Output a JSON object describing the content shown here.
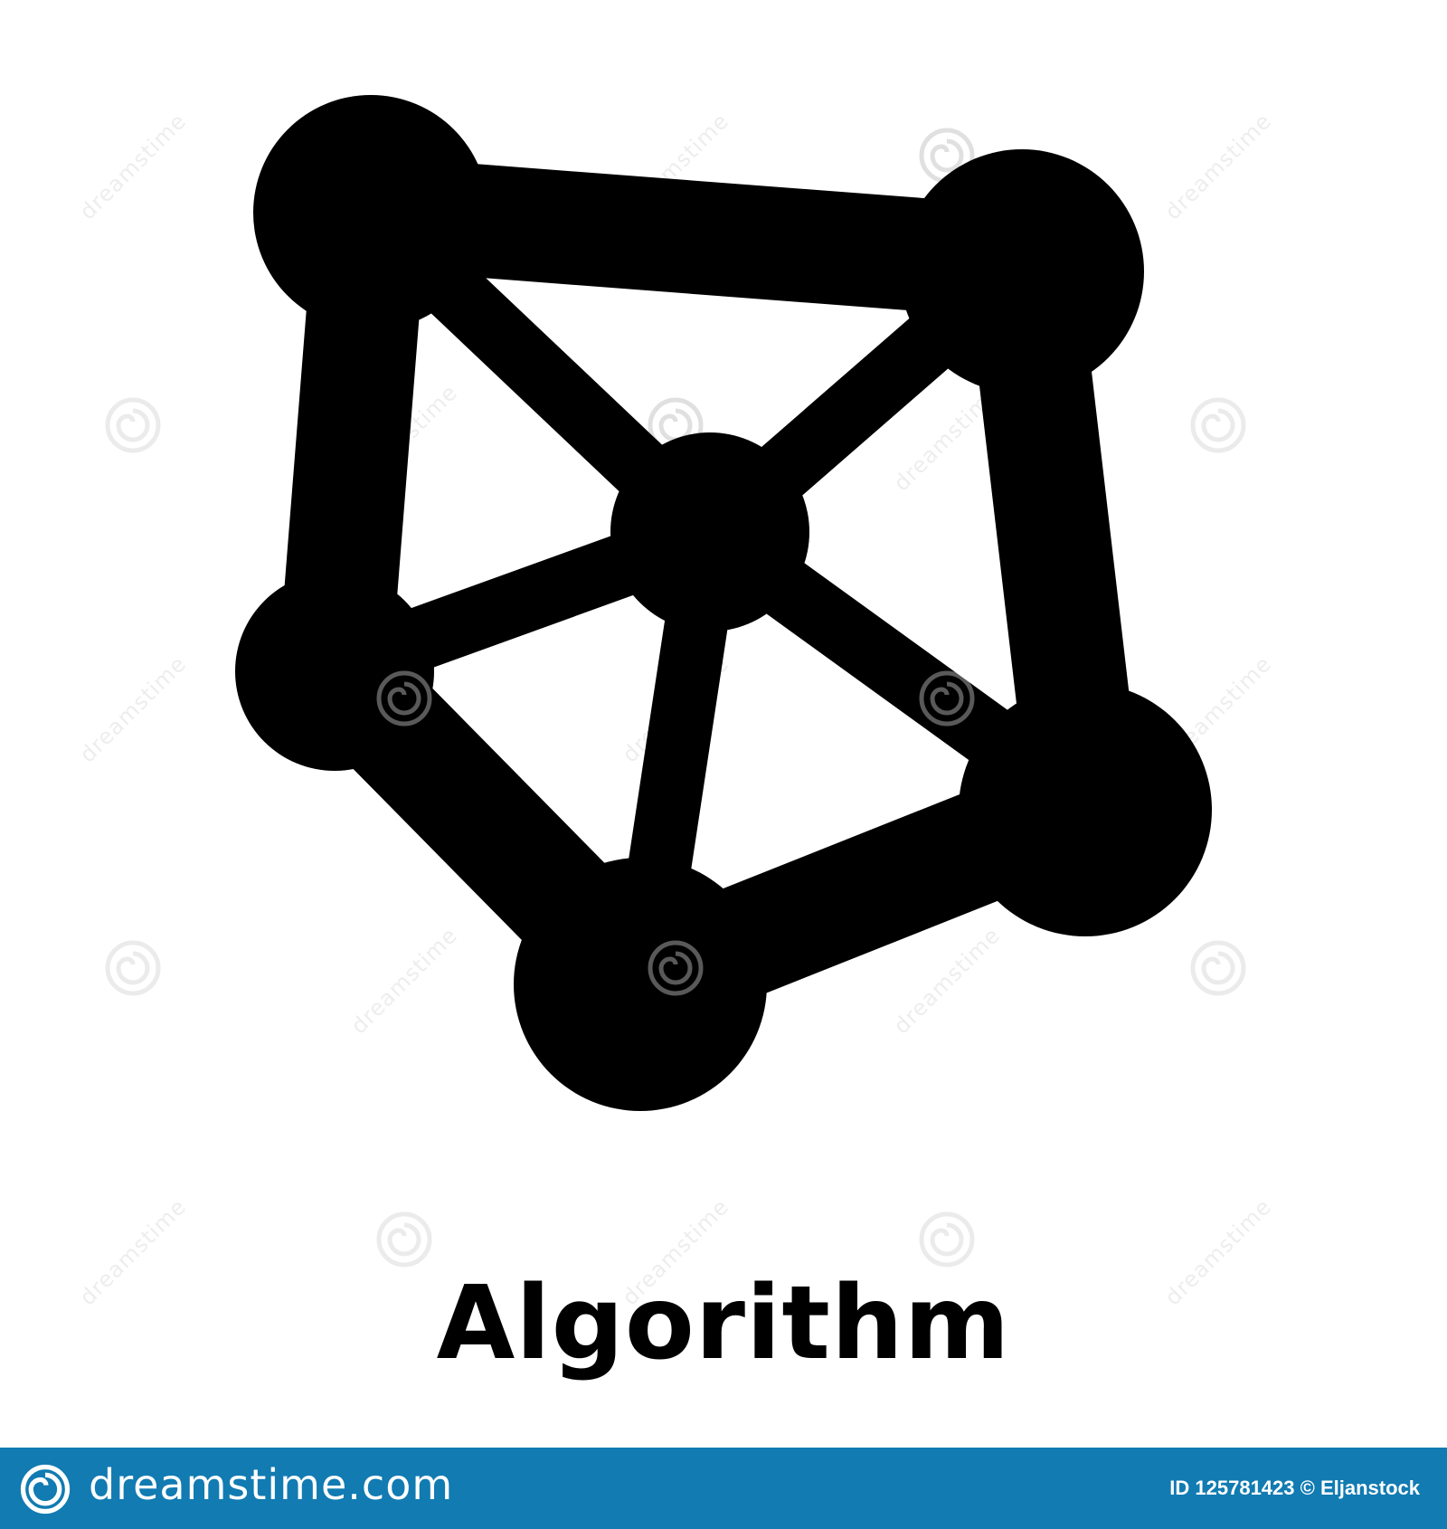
{
  "caption": "Algorithm",
  "watermark": {
    "text": "dreamstime",
    "swirl_icon": "swirl-logo-icon"
  },
  "footer": {
    "site": "dreamstime.com",
    "credit": "ID 125781423 © Eljanstock",
    "logo_icon": "swirl-logo-icon",
    "background_color": "#117bb2",
    "text_color": "#ffffff"
  },
  "icon": {
    "name": "network-graph-icon",
    "color": "#000000"
  }
}
